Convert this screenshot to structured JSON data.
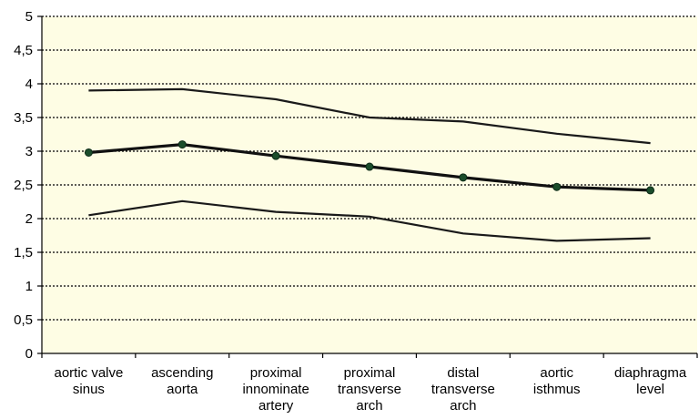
{
  "chart_data": {
    "type": "line",
    "categories": [
      [
        "aortic valve",
        "sinus"
      ],
      [
        "ascending",
        "aorta"
      ],
      [
        "proximal",
        "innominate",
        "artery"
      ],
      [
        "proximal",
        "transverse",
        "arch"
      ],
      [
        "distal",
        "transverse",
        "arch"
      ],
      [
        "aortic",
        "isthmus"
      ],
      [
        "diaphragma",
        "level"
      ]
    ],
    "y_tick_labels": [
      "0",
      "0,5",
      "1",
      "1,5",
      "2",
      "2,5",
      "3",
      "3,5",
      "4",
      "4,5",
      "5"
    ],
    "ylim": [
      0,
      5
    ],
    "y_ticks": [
      0,
      0.5,
      1,
      1.5,
      2,
      2.5,
      3,
      3.5,
      4,
      4.5,
      5
    ],
    "grid": "horizontal dotted",
    "series": [
      {
        "key": "upper",
        "values": [
          3.9,
          3.92,
          3.77,
          3.5,
          3.44,
          3.26,
          3.12
        ],
        "markers": false
      },
      {
        "key": "mean",
        "values": [
          2.98,
          3.1,
          2.93,
          2.77,
          2.61,
          2.47,
          2.42
        ],
        "markers": true
      },
      {
        "key": "lower",
        "values": [
          2.05,
          2.26,
          2.1,
          2.03,
          1.78,
          1.67,
          1.71
        ],
        "markers": false
      }
    ],
    "colors": {
      "background": "#fefde4",
      "line": "#1a1a1a",
      "marker": "#1b4d2b"
    }
  }
}
